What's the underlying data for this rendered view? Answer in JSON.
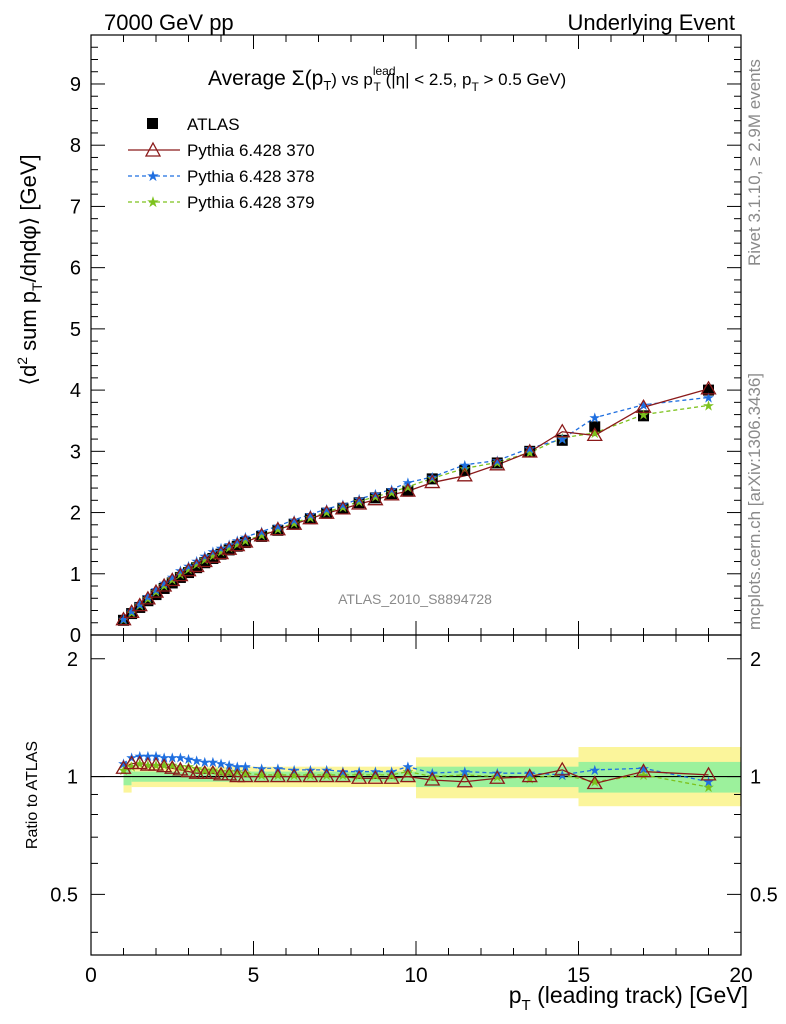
{
  "header": {
    "left": "7000 GeV pp",
    "right": "Underlying Event"
  },
  "side_labels": {
    "top": "Rivet 3.1.10, ≥ 2.9M events",
    "bottom": "mcplots.cern.ch [arXiv:1306.3436]"
  },
  "analysis_id": "ATLAS_2010_S8894728",
  "chart_data": [
    {
      "type": "scatter",
      "panel": "main",
      "title": "Average Σ(p_T) vs p_T^lead (|η| < 2.5, p_T > 0.5 GeV)",
      "title_parts": {
        "a": "Average ",
        "sigma": "Σ(p",
        "sub_t": "T",
        "b": ") vs p",
        "sup_lead": "lead",
        "c": " (|η| < 2.5, p",
        "d": " > 0.5 GeV)"
      },
      "xlabel": "p_T (leading track) [GeV]",
      "xlabel_parts": {
        "p": "p",
        "sub": "T",
        "rest": " (leading track) [GeV]"
      },
      "ylabel": "⟨d² sum p_T/dηdφ⟩ [GeV]",
      "ylabel_parts": {
        "a": "⟨d",
        "sup2": "2",
        "b": " sum p",
        "sub": "T",
        "c": "/dηdφ⟩ [GeV]"
      },
      "xlim": [
        0,
        20
      ],
      "ylim": [
        0,
        9.8
      ],
      "xticks": [
        "0",
        "5",
        "10",
        "15",
        "20"
      ],
      "yticks": [
        "0",
        "1",
        "2",
        "3",
        "4",
        "5",
        "6",
        "7",
        "8",
        "9"
      ],
      "legend_position": "top-left",
      "x": [
        1.0,
        1.25,
        1.5,
        1.75,
        2.0,
        2.25,
        2.5,
        2.75,
        3.0,
        3.25,
        3.5,
        3.75,
        4.0,
        4.25,
        4.5,
        4.75,
        5.25,
        5.75,
        6.25,
        6.75,
        7.25,
        7.75,
        8.25,
        8.75,
        9.25,
        9.75,
        10.5,
        11.5,
        12.5,
        13.5,
        14.5,
        15.5,
        17.0,
        19.0
      ],
      "series": [
        {
          "name": "ATLAS",
          "color": "#000000",
          "marker": "square",
          "values": [
            0.24,
            0.35,
            0.45,
            0.56,
            0.66,
            0.76,
            0.85,
            0.94,
            1.02,
            1.1,
            1.18,
            1.25,
            1.32,
            1.39,
            1.45,
            1.51,
            1.61,
            1.71,
            1.81,
            1.9,
            1.99,
            2.07,
            2.16,
            2.24,
            2.31,
            2.35,
            2.55,
            2.69,
            2.81,
            3.0,
            3.18,
            3.4,
            3.58,
            4.0
          ]
        },
        {
          "name": "Pythia 6.428 370",
          "color": "#8b1a1a",
          "marker": "triangle",
          "values": [
            0.25,
            0.37,
            0.48,
            0.59,
            0.7,
            0.8,
            0.89,
            0.97,
            1.05,
            1.12,
            1.2,
            1.27,
            1.33,
            1.4,
            1.46,
            1.52,
            1.62,
            1.72,
            1.81,
            1.9,
            1.99,
            2.06,
            2.14,
            2.21,
            2.29,
            2.35,
            2.49,
            2.6,
            2.78,
            2.99,
            3.32,
            3.26,
            3.72,
            4.02
          ]
        },
        {
          "name": "Pythia 6.428 378",
          "color": "#1f6fe0",
          "marker": "star",
          "values": [
            0.26,
            0.39,
            0.51,
            0.63,
            0.74,
            0.85,
            0.95,
            1.05,
            1.13,
            1.21,
            1.29,
            1.36,
            1.42,
            1.48,
            1.54,
            1.6,
            1.69,
            1.78,
            1.88,
            1.97,
            2.06,
            2.13,
            2.22,
            2.3,
            2.38,
            2.49,
            2.58,
            2.78,
            2.85,
            3.05,
            3.2,
            3.55,
            3.76,
            3.88
          ]
        },
        {
          "name": "Pythia 6.428 379",
          "color": "#7dc21e",
          "marker": "star",
          "values": [
            0.25,
            0.37,
            0.49,
            0.6,
            0.71,
            0.81,
            0.91,
            1.0,
            1.08,
            1.16,
            1.23,
            1.3,
            1.36,
            1.43,
            1.49,
            1.54,
            1.63,
            1.73,
            1.83,
            1.92,
            2.01,
            2.09,
            2.18,
            2.26,
            2.33,
            2.42,
            2.56,
            2.72,
            2.82,
            2.98,
            3.22,
            3.3,
            3.6,
            3.75
          ]
        }
      ]
    },
    {
      "type": "scatter",
      "panel": "ratio",
      "ylabel": "Ratio to ATLAS",
      "xlim": [
        0,
        20
      ],
      "ylim": [
        0.35,
        2.3
      ],
      "yscale": "log",
      "yticks": [
        "0.5",
        "1",
        "2"
      ],
      "xticks": [
        "0",
        "5",
        "10",
        "15",
        "20"
      ],
      "bands": [
        {
          "x0": 1.0,
          "x1": 1.25,
          "green": [
            0.95,
            1.05
          ],
          "yellow": [
            0.91,
            1.09
          ]
        },
        {
          "x0": 1.25,
          "x1": 10.0,
          "green": [
            0.97,
            1.03
          ],
          "yellow": [
            0.94,
            1.06
          ]
        },
        {
          "x0": 10.0,
          "x1": 15.0,
          "green": [
            0.94,
            1.06
          ],
          "yellow": [
            0.88,
            1.12
          ]
        },
        {
          "x0": 15.0,
          "x1": 20.0,
          "green": [
            0.91,
            1.09
          ],
          "yellow": [
            0.84,
            1.19
          ]
        }
      ],
      "series": [
        {
          "name": "Pythia 6.428 370",
          "color": "#8b1a1a",
          "values": [
            1.05,
            1.08,
            1.08,
            1.07,
            1.07,
            1.06,
            1.05,
            1.04,
            1.03,
            1.02,
            1.02,
            1.02,
            1.01,
            1.01,
            1.0,
            1.0,
            1.0,
            1.0,
            1.0,
            1.0,
            1.0,
            1.0,
            0.99,
            0.99,
            0.99,
            1.0,
            0.98,
            0.97,
            0.99,
            1.0,
            1.04,
            0.96,
            1.03,
            1.01
          ]
        },
        {
          "name": "Pythia 6.428 378",
          "color": "#1f6fe0",
          "values": [
            1.08,
            1.12,
            1.13,
            1.13,
            1.13,
            1.12,
            1.12,
            1.12,
            1.11,
            1.1,
            1.09,
            1.09,
            1.08,
            1.07,
            1.06,
            1.06,
            1.05,
            1.05,
            1.04,
            1.04,
            1.04,
            1.03,
            1.03,
            1.03,
            1.03,
            1.06,
            1.02,
            1.03,
            1.02,
            1.02,
            1.01,
            1.04,
            1.05,
            0.97
          ]
        },
        {
          "name": "Pythia 6.428 379",
          "color": "#7dc21e",
          "values": [
            1.04,
            1.06,
            1.08,
            1.07,
            1.07,
            1.07,
            1.07,
            1.06,
            1.06,
            1.05,
            1.04,
            1.04,
            1.03,
            1.03,
            1.03,
            1.02,
            1.01,
            1.01,
            1.01,
            1.01,
            1.01,
            1.01,
            1.01,
            1.01,
            1.01,
            1.03,
            1.0,
            1.01,
            1.0,
            0.99,
            1.01,
            0.97,
            1.01,
            0.94
          ]
        }
      ]
    }
  ]
}
